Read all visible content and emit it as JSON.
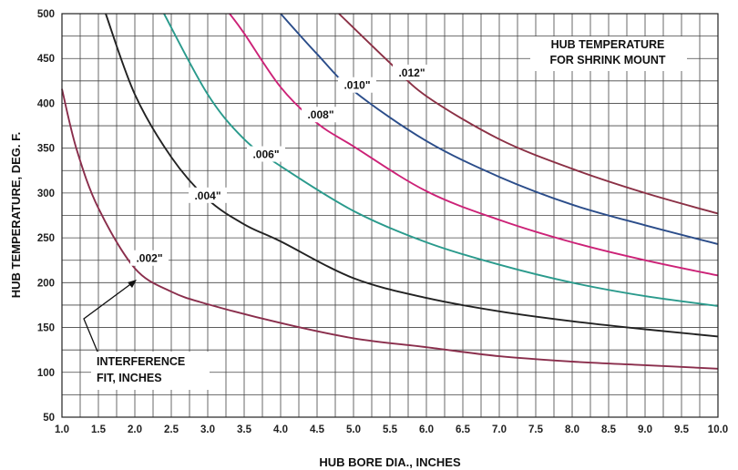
{
  "chart_data": {
    "type": "line",
    "title": "HUB TEMPERATURE",
    "subtitle": "FOR SHRINK MOUNT",
    "xlabel": "HUB BORE DIA., INCHES",
    "ylabel": "HUB TEMPERATURE, DEG. F.",
    "xlim": [
      1.0,
      10.0
    ],
    "ylim": [
      50,
      500
    ],
    "xticks": [
      "1.0",
      "1.5",
      "2.0",
      "2.5",
      "3.0",
      "3.5",
      "4.0",
      "4.5",
      "5.0",
      "5.5",
      "6.0",
      "6.5",
      "7.0",
      "7.5",
      "8.0",
      "8.5",
      "9.0",
      "9.5",
      "10.0"
    ],
    "yticks": [
      "50",
      "100",
      "150",
      "200",
      "250",
      "300",
      "350",
      "400",
      "450",
      "500"
    ],
    "grid": true,
    "annotation": {
      "line1": "INTERFERENCE",
      "line2": "FIT, INCHES"
    },
    "series": [
      {
        "name": ".002\"",
        "color": "#8a2e4c",
        "x": [
          1.0,
          1.2,
          1.5,
          2.0,
          2.5,
          3.0,
          4.0,
          5.0,
          6.0,
          7.0,
          8.0,
          9.0,
          10.0
        ],
        "y": [
          416,
          349,
          283,
          216,
          190,
          176,
          155,
          138,
          128,
          118,
          112,
          108,
          104
        ]
      },
      {
        "name": ".004\"",
        "color": "#222222",
        "x": [
          1.6,
          2.0,
          2.5,
          3.0,
          3.5,
          4.0,
          5.0,
          6.0,
          7.0,
          8.0,
          9.0,
          10.0
        ],
        "y": [
          500,
          410,
          340,
          293,
          265,
          246,
          205,
          183,
          168,
          157,
          148,
          140
        ]
      },
      {
        "name": ".006\"",
        "color": "#2a9a8c",
        "x": [
          2.4,
          3.0,
          3.5,
          4.0,
          5.0,
          6.0,
          7.0,
          8.0,
          9.0,
          10.0
        ],
        "y": [
          500,
          410,
          360,
          330,
          280,
          245,
          220,
          200,
          185,
          174
        ]
      },
      {
        "name": ".008\"",
        "color": "#cc2277",
        "x": [
          3.3,
          3.5,
          4.0,
          4.5,
          5.0,
          6.0,
          7.0,
          8.0,
          9.0,
          10.0
        ],
        "y": [
          500,
          478,
          418,
          378,
          352,
          302,
          270,
          245,
          225,
          208
        ]
      },
      {
        "name": ".010\"",
        "color": "#2b4d8a",
        "x": [
          4.0,
          4.5,
          5.0,
          6.0,
          7.0,
          8.0,
          9.0,
          10.0
        ],
        "y": [
          500,
          455,
          414,
          358,
          318,
          287,
          264,
          243
        ]
      },
      {
        "name": ".012\"",
        "color": "#8b3045",
        "x": [
          4.8,
          5.5,
          6.0,
          7.0,
          8.0,
          9.0,
          10.0
        ],
        "y": [
          500,
          445,
          408,
          360,
          327,
          300,
          277
        ]
      }
    ],
    "labels": [
      {
        "text": ".002\"",
        "x": 2.2,
        "y": 226
      },
      {
        "text": ".004\"",
        "x": 3.0,
        "y": 296
      },
      {
        "text": ".006\"",
        "x": 3.8,
        "y": 342
      },
      {
        "text": ".008\"",
        "x": 4.55,
        "y": 386
      },
      {
        "text": ".010\"",
        "x": 5.05,
        "y": 419
      },
      {
        "text": ".012\"",
        "x": 5.8,
        "y": 433
      }
    ]
  }
}
